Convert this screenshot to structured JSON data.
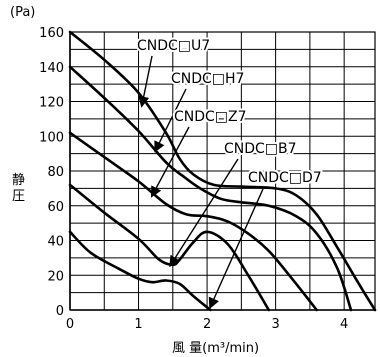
{
  "chart_data": {
    "type": "line",
    "xlabel": "風 量(m³/min)",
    "ylabel": "静圧",
    "yunit": "(Pa)",
    "xlim": [
      0,
      4.45
    ],
    "ylim": [
      0,
      160
    ],
    "xticks": [
      "0",
      "1",
      "2",
      "3",
      "4"
    ],
    "yticks": [
      "0",
      "20",
      "40",
      "60",
      "80",
      "100",
      "120",
      "140",
      "160"
    ],
    "grid": true,
    "series": [
      {
        "name": "CNDC□U7",
        "x": [
          0,
          0.5,
          1.0,
          1.4,
          1.6,
          1.8,
          2.1,
          2.5,
          3.0,
          3.3,
          3.6,
          3.9,
          4.2,
          4.45
        ],
        "y": [
          160,
          144,
          125,
          102,
          87,
          78,
          72,
          71,
          70,
          66,
          55,
          36,
          16,
          0
        ]
      },
      {
        "name": "CNDC□H7",
        "x": [
          0,
          0.5,
          1.0,
          1.4,
          1.65,
          1.9,
          2.2,
          2.5,
          2.9,
          3.3,
          3.6,
          3.9,
          4.1
        ],
        "y": [
          140,
          122,
          103,
          85,
          77,
          70,
          64,
          62,
          60,
          54,
          44,
          24,
          0
        ]
      },
      {
        "name": "CNDC□Z7",
        "x": [
          0,
          0.5,
          1.0,
          1.4,
          1.7,
          2.0,
          2.3,
          2.6,
          2.9,
          3.2,
          3.6
        ],
        "y": [
          102,
          88,
          74,
          61,
          55,
          54,
          51,
          44,
          34,
          20,
          0
        ]
      },
      {
        "name": "CNDC□B7",
        "x": [
          0,
          0.5,
          1.0,
          1.3,
          1.5,
          1.6,
          1.8,
          2.0,
          2.3,
          2.6,
          2.9
        ],
        "y": [
          72,
          56,
          41,
          29,
          26,
          29,
          39,
          45,
          38,
          20,
          0
        ]
      },
      {
        "name": "CNDC□D7",
        "x": [
          0,
          0.3,
          0.7,
          1.0,
          1.2,
          1.4,
          1.6,
          1.8,
          2.05
        ],
        "y": [
          45,
          33,
          24,
          18,
          16,
          17,
          15,
          8,
          0
        ]
      }
    ]
  }
}
